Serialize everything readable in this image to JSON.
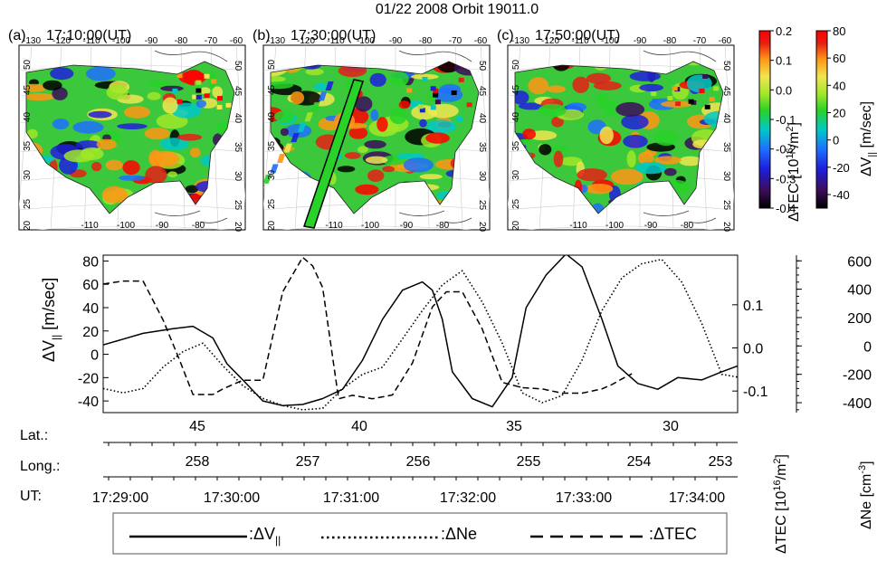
{
  "figure": {
    "title": "01/22 2008 Orbit 19011.0",
    "maps": [
      {
        "tag": "(a)",
        "time": "17:10:00(UT)"
      },
      {
        "tag": "(b)",
        "time": "17:30:00(UT)"
      },
      {
        "tag": "(c)",
        "time": "17:50:00(UT)"
      }
    ],
    "map_top_lon_ticks": [
      "-130",
      "-120",
      "-110",
      "-100",
      "-90",
      "-80",
      "-70",
      "-60"
    ],
    "map_bottom_lon_ticks": [
      "-110",
      "-100",
      "-90",
      "-80"
    ],
    "map_lat_ticks": [
      "50",
      "45",
      "40",
      "35",
      "30",
      "25",
      "20"
    ],
    "colorbar_tec": {
      "label": "ΔTEC [10",
      "label_sup": "16",
      "label_end": "/m",
      "label_sup2": "2",
      "label_close": "]",
      "ticks": [
        "0.2",
        "0.1",
        "0.0",
        "-0.1",
        "-0.2",
        "-0.3",
        "-0.4"
      ]
    },
    "colorbar_v": {
      "label": "ΔV",
      "label_sub": "||",
      "label_end": " [m/sec]",
      "ticks": [
        "80",
        "60",
        "40",
        "20",
        "0",
        "-20",
        "-40"
      ]
    },
    "colors": {
      "cmap": [
        "#000000",
        "#3c0c5a",
        "#1e1edc",
        "#1e6eff",
        "#00c8c8",
        "#28d228",
        "#a0e628",
        "#f0e650",
        "#ff9614",
        "#e61e14",
        "#ff0000"
      ]
    }
  },
  "labels": {
    "left_axis": "ΔV",
    "left_axis_sub": "||",
    "left_axis_end": " [m/sec]",
    "right_axis_ne": "ΔNe [cm",
    "right_axis_ne_sup": "-3",
    "right_axis_ne_end": "]",
    "right_axis_tec": "ΔTEC [10",
    "right_axis_tec_sup": "16",
    "right_axis_tec_end": "/m",
    "right_axis_tec_sup2": "2",
    "right_axis_tec_close": "]",
    "lat_label": "Lat.:",
    "long_label": "Long.:",
    "ut_label": "UT:",
    "legend_v": ":ΔV",
    "legend_v_sub": "||",
    "legend_ne": ":ΔNe",
    "legend_tec": ":ΔTEC"
  },
  "chart_data": {
    "type": "line",
    "left_yticks": [
      "80",
      "60",
      "40",
      "20",
      "0",
      "-20",
      "-40"
    ],
    "tec_ticks": [
      "0.1",
      "0.0",
      "-0.1"
    ],
    "ne_ticks": [
      "600",
      "400",
      "200",
      "0",
      "-200",
      "-400"
    ],
    "ylim_v": [
      -50,
      85
    ],
    "ylim_tec": [
      -0.15,
      0.215
    ],
    "ylim_ne": [
      -470,
      640
    ],
    "lat_ticks": [
      "45",
      "40",
      "35",
      "30"
    ],
    "long_ticks": [
      "258",
      "257",
      "256",
      "255",
      "254",
      "253"
    ],
    "ut_ticks": [
      "17:29:00",
      "17:30:00",
      "17:31:00",
      "17:32:00",
      "17:33:00",
      "17:34:00"
    ],
    "time_range_s": [
      0,
      318
    ],
    "series": [
      {
        "style": "solid",
        "axis": "v",
        "x": [
          0,
          10,
          20,
          35,
          45,
          55,
          62,
          70,
          80,
          90,
          100,
          110,
          120,
          130,
          140,
          150,
          160,
          165,
          170,
          175,
          185,
          195,
          205,
          212,
          222,
          232,
          240,
          250,
          258,
          268,
          278,
          288,
          300,
          310,
          318
        ],
        "y": [
          8,
          13,
          18,
          22,
          24,
          14,
          -8,
          -22,
          -40,
          -44,
          -43,
          -38,
          -30,
          -5,
          30,
          55,
          62,
          55,
          30,
          -15,
          -38,
          -45,
          -20,
          40,
          68,
          86,
          75,
          30,
          -10,
          -25,
          -30,
          -20,
          -22,
          -15,
          -10
        ]
      },
      {
        "style": "dotted",
        "axis": "ne",
        "x": [
          0,
          10,
          20,
          30,
          40,
          50,
          60,
          70,
          80,
          90,
          100,
          110,
          120,
          130,
          140,
          150,
          160,
          170,
          180,
          190,
          200,
          210,
          220,
          230,
          240,
          250,
          260,
          270,
          280,
          290,
          300,
          310,
          318
        ],
        "y": [
          -300,
          -330,
          -300,
          -150,
          -40,
          20,
          -140,
          -280,
          -370,
          -420,
          -450,
          -440,
          -300,
          -200,
          -150,
          50,
          250,
          430,
          530,
          310,
          20,
          -330,
          -400,
          -350,
          -100,
          250,
          480,
          580,
          610,
          450,
          160,
          -200,
          -220
        ]
      },
      {
        "style": "dashed",
        "axis": "tec",
        "x": [
          0,
          10,
          20,
          30,
          38,
          45,
          55,
          60,
          70,
          80,
          90,
          100,
          105,
          110,
          118,
          125,
          135,
          145,
          155,
          165,
          172,
          180,
          190,
          200,
          210,
          220,
          230,
          240,
          250,
          255,
          260,
          265
        ],
        "y": [
          0.148,
          0.155,
          0.155,
          0.065,
          -0.025,
          -0.108,
          -0.108,
          -0.095,
          -0.075,
          -0.075,
          0.13,
          0.21,
          0.19,
          0.14,
          -0.118,
          -0.11,
          -0.118,
          -0.109,
          -0.035,
          0.095,
          0.13,
          0.13,
          0.044,
          -0.08,
          -0.092,
          -0.095,
          -0.105,
          -0.105,
          -0.095,
          -0.085,
          -0.072,
          -0.06
        ]
      }
    ]
  }
}
